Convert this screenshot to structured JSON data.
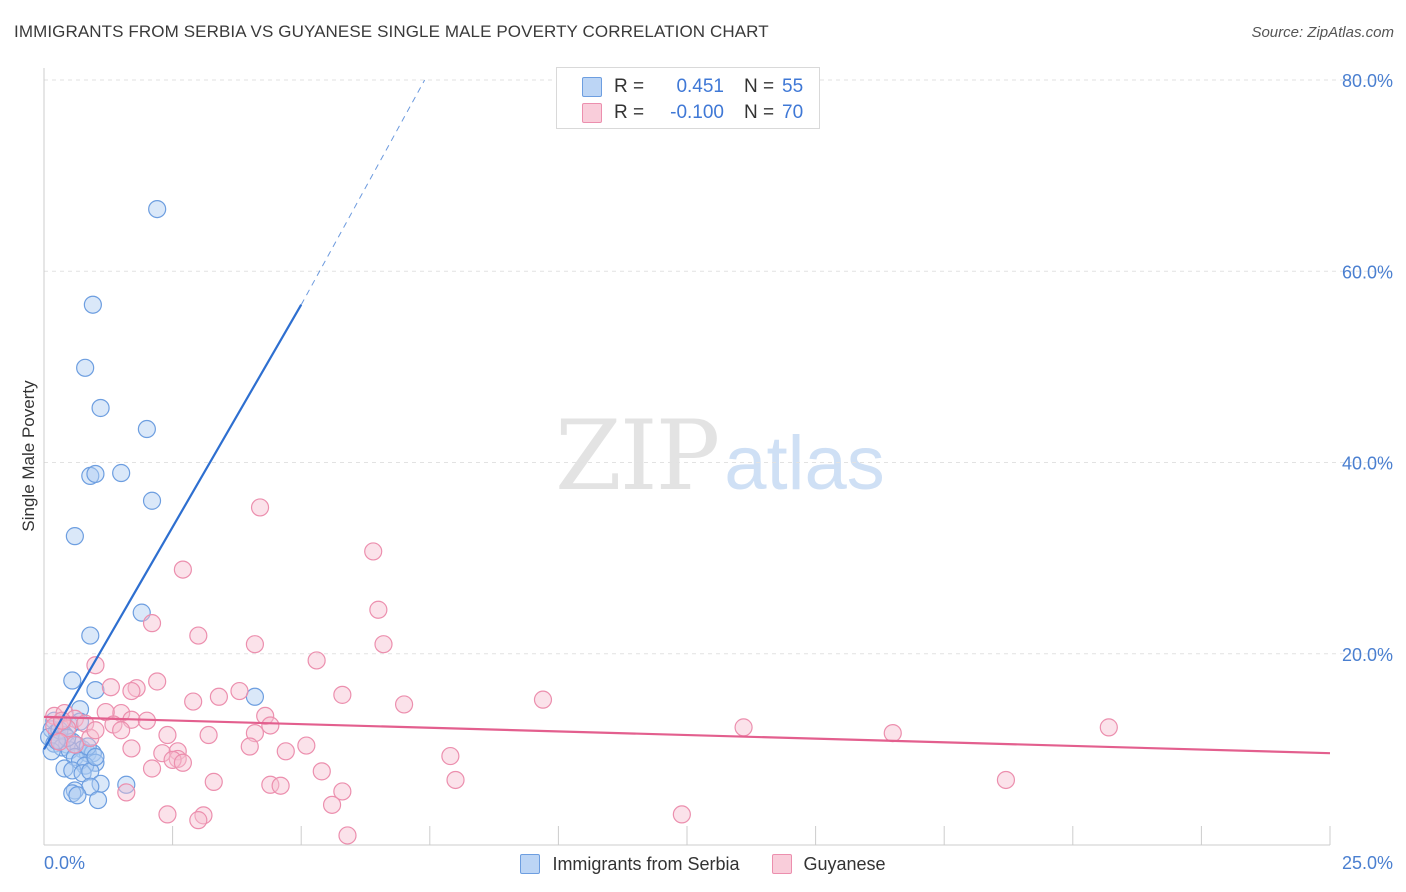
{
  "title": "IMMIGRANTS FROM SERBIA VS GUYANESE SINGLE MALE POVERTY CORRELATION CHART",
  "source": "Source: ZipAtlas.com",
  "watermark": {
    "zip": "ZIP",
    "atlas": "atlas"
  },
  "legend": {
    "rows": [
      {
        "r_label": "R =",
        "r_value": "0.451",
        "n_label": "N =",
        "n_value": "55"
      },
      {
        "r_label": "R =",
        "r_value": "-0.100",
        "n_label": "N =",
        "n_value": "70"
      }
    ]
  },
  "colors": {
    "blue_fill": "#aecbf2",
    "blue_stroke": "#6d9ee0",
    "blue_line": "#2e6fd0",
    "pink_fill": "#f7bfd1",
    "pink_stroke": "#ec8fae",
    "pink_line": "#e35f8e",
    "grid": "#e2e2e2",
    "axis": "#cccccc"
  },
  "chart_data": {
    "type": "scatter",
    "title": "IMMIGRANTS FROM SERBIA VS GUYANESE SINGLE MALE POVERTY CORRELATION CHART",
    "xlabel": "",
    "ylabel": "Single Male Poverty",
    "xlim": [
      0,
      25
    ],
    "ylim": [
      0,
      80
    ],
    "x_tick_labels": [
      "0.0%",
      "25.0%"
    ],
    "y_ticks": [
      20,
      40,
      60,
      80
    ],
    "y_tick_labels": [
      "20.0%",
      "40.0%",
      "60.0%",
      "80.0%"
    ],
    "series": [
      {
        "name": "Immigrants from Serbia",
        "color": "blue",
        "trend": {
          "x0": 0,
          "y0": 10.0,
          "x1": 5.0,
          "y1": 56.5,
          "dash_to_x": 7.4,
          "dash_to_y": 80
        },
        "points": [
          [
            2.2,
            66.5
          ],
          [
            0.95,
            56.5
          ],
          [
            0.8,
            49.9
          ],
          [
            1.1,
            45.7
          ],
          [
            2.0,
            43.5
          ],
          [
            0.9,
            38.6
          ],
          [
            1.0,
            38.8
          ],
          [
            1.5,
            38.9
          ],
          [
            2.1,
            36.0
          ],
          [
            0.6,
            32.3
          ],
          [
            1.9,
            24.3
          ],
          [
            0.9,
            21.9
          ],
          [
            0.55,
            17.2
          ],
          [
            1.0,
            16.2
          ],
          [
            4.1,
            15.5
          ],
          [
            0.7,
            14.2
          ],
          [
            0.2,
            13.0
          ],
          [
            0.35,
            12.7
          ],
          [
            0.5,
            12.5
          ],
          [
            0.15,
            12.1
          ],
          [
            0.25,
            11.8
          ],
          [
            0.4,
            11.5
          ],
          [
            0.1,
            11.3
          ],
          [
            0.3,
            11.0
          ],
          [
            0.55,
            10.8
          ],
          [
            0.2,
            10.6
          ],
          [
            0.45,
            10.5
          ],
          [
            0.65,
            10.4
          ],
          [
            0.35,
            10.2
          ],
          [
            0.75,
            10.0
          ],
          [
            0.5,
            9.9
          ],
          [
            0.15,
            9.8
          ],
          [
            0.85,
            9.6
          ],
          [
            0.6,
            9.2
          ],
          [
            0.95,
            9.6
          ],
          [
            0.7,
            8.8
          ],
          [
            1.0,
            8.6
          ],
          [
            0.8,
            8.3
          ],
          [
            0.4,
            8.0
          ],
          [
            0.55,
            7.8
          ],
          [
            0.75,
            7.5
          ],
          [
            0.9,
            7.7
          ],
          [
            1.1,
            6.4
          ],
          [
            0.9,
            6.1
          ],
          [
            1.6,
            6.3
          ],
          [
            0.6,
            5.7
          ],
          [
            0.55,
            5.4
          ],
          [
            0.65,
            5.2
          ],
          [
            1.05,
            4.7
          ],
          [
            0.3,
            12.0
          ],
          [
            0.45,
            11.2
          ],
          [
            0.25,
            10.9
          ],
          [
            0.85,
            10.3
          ],
          [
            1.0,
            9.2
          ],
          [
            0.7,
            12.9
          ]
        ]
      },
      {
        "name": "Guyanese",
        "color": "pink",
        "trend": {
          "x0": 0,
          "y0": 13.4,
          "x1": 25,
          "y1": 9.6
        },
        "points": [
          [
            4.2,
            35.3
          ],
          [
            6.4,
            30.7
          ],
          [
            2.7,
            28.8
          ],
          [
            6.5,
            24.6
          ],
          [
            2.1,
            23.2
          ],
          [
            3.0,
            21.9
          ],
          [
            4.1,
            21.0
          ],
          [
            6.6,
            21.0
          ],
          [
            5.3,
            19.3
          ],
          [
            1.0,
            18.8
          ],
          [
            2.2,
            17.1
          ],
          [
            1.8,
            16.4
          ],
          [
            1.3,
            16.5
          ],
          [
            1.7,
            16.1
          ],
          [
            3.8,
            16.1
          ],
          [
            3.4,
            15.5
          ],
          [
            5.8,
            15.7
          ],
          [
            2.9,
            15.0
          ],
          [
            9.7,
            15.2
          ],
          [
            7.0,
            14.7
          ],
          [
            0.2,
            13.5
          ],
          [
            0.4,
            13.8
          ],
          [
            0.6,
            13.2
          ],
          [
            1.5,
            13.8
          ],
          [
            1.7,
            13.1
          ],
          [
            1.2,
            13.9
          ],
          [
            2.0,
            13.0
          ],
          [
            4.3,
            13.5
          ],
          [
            0.8,
            12.7
          ],
          [
            1.35,
            12.6
          ],
          [
            0.45,
            12.2
          ],
          [
            0.2,
            12.4
          ],
          [
            1.5,
            12.0
          ],
          [
            4.4,
            12.5
          ],
          [
            13.6,
            12.3
          ],
          [
            20.7,
            12.3
          ],
          [
            2.4,
            11.5
          ],
          [
            3.2,
            11.5
          ],
          [
            4.1,
            11.7
          ],
          [
            16.5,
            11.7
          ],
          [
            0.9,
            11.2
          ],
          [
            0.3,
            10.8
          ],
          [
            0.6,
            10.5
          ],
          [
            1.7,
            10.1
          ],
          [
            2.3,
            9.6
          ],
          [
            2.6,
            9.8
          ],
          [
            4.0,
            10.3
          ],
          [
            5.1,
            10.4
          ],
          [
            4.7,
            9.8
          ],
          [
            7.9,
            9.3
          ],
          [
            2.6,
            9.0
          ],
          [
            2.5,
            8.9
          ],
          [
            2.7,
            8.6
          ],
          [
            2.1,
            8.0
          ],
          [
            5.4,
            7.7
          ],
          [
            3.3,
            6.6
          ],
          [
            4.4,
            6.3
          ],
          [
            4.6,
            6.2
          ],
          [
            8.0,
            6.8
          ],
          [
            18.7,
            6.8
          ],
          [
            1.6,
            5.5
          ],
          [
            5.8,
            5.6
          ],
          [
            5.6,
            4.2
          ],
          [
            2.4,
            3.2
          ],
          [
            3.1,
            3.1
          ],
          [
            3.0,
            2.6
          ],
          [
            12.4,
            3.2
          ],
          [
            5.9,
            1.0
          ],
          [
            0.35,
            13.0
          ],
          [
            1.0,
            12.0
          ]
        ]
      }
    ]
  }
}
